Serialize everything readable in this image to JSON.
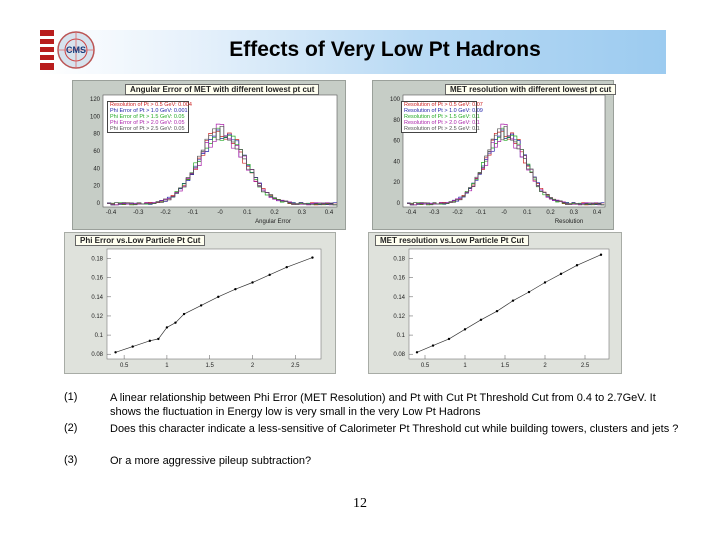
{
  "header": {
    "title": "Effects of Very Low Pt Hadrons",
    "logo_text": "CMS"
  },
  "plots": {
    "top_left": {
      "title": "Angular Error of MET with different lowest pt cut",
      "y_ticks": [
        "120",
        "100",
        "80",
        "60",
        "40",
        "20",
        "0"
      ],
      "x_ticks": [
        "-0.4",
        "-0.3",
        "-0.2",
        "-0.1",
        "-0",
        "0.1",
        "0.2",
        "0.3",
        "0.4"
      ],
      "xlabel": "Angular Error",
      "legend": [
        {
          "label": "Resolution of Pt > 0.5 GeV: 0.004",
          "color": "#cc2222"
        },
        {
          "label": "Phi Error of Pt > 1.0 GeV: 0.001",
          "color": "#2222aa"
        },
        {
          "label": "Phi Error of Pt > 1.5 GeV: 0.05",
          "color": "#22aa22"
        },
        {
          "label": "Phi Error of Pt > 2.0 GeV: 0.05",
          "color": "#aa22aa"
        },
        {
          "label": "Phi Error of Pt > 2.5 GeV: 0.05",
          "color": "#555555"
        }
      ]
    },
    "top_right": {
      "title": "MET resolution with different lowest pt cut",
      "y_ticks": [
        "100",
        "80",
        "60",
        "40",
        "20",
        "0"
      ],
      "x_ticks": [
        "-0.4",
        "-0.3",
        "-0.2",
        "-0.1",
        "-0",
        "0.1",
        "0.2",
        "0.3",
        "0.4"
      ],
      "xlabel": "Resolution",
      "legend": [
        {
          "label": "Resolution of Pt > 0.5 GeV: 0.07",
          "color": "#cc2222"
        },
        {
          "label": "Resolution of Pt > 1.0 GeV: 0.09",
          "color": "#2222aa"
        },
        {
          "label": "Resolution of Pt > 1.5 GeV: 0.1",
          "color": "#22aa22"
        },
        {
          "label": "Resolution of Pt > 2.0 GeV: 0.1",
          "color": "#aa22aa"
        },
        {
          "label": "Resolution of Pt > 2.5 GeV: 0.1",
          "color": "#555555"
        }
      ]
    },
    "bottom_left": {
      "title": "Phi Error vs.Low Particle Pt Cut",
      "y_ticks": [
        "0.18",
        "0.16",
        "0.14",
        "0.12",
        "0.1",
        "0.08"
      ],
      "x_ticks": [
        "0.5",
        "1",
        "1.5",
        "2",
        "2.5"
      ]
    },
    "bottom_right": {
      "title": "MET resolution vs.Low Particle Pt Cut",
      "y_ticks": [
        "0.18",
        "0.16",
        "0.14",
        "0.12",
        "0.1",
        "0.08"
      ],
      "x_ticks": [
        "0.5",
        "1",
        "1.5",
        "2",
        "2.5"
      ]
    }
  },
  "chart_data": [
    {
      "type": "line",
      "title": "Phi Error vs.Low Particle Pt Cut",
      "x": [
        0.4,
        0.6,
        0.8,
        0.9,
        1.0,
        1.1,
        1.2,
        1.4,
        1.6,
        1.8,
        2.0,
        2.2,
        2.4,
        2.7
      ],
      "y": [
        0.082,
        0.088,
        0.094,
        0.096,
        0.108,
        0.113,
        0.122,
        0.131,
        0.14,
        0.148,
        0.155,
        0.163,
        0.171,
        0.181
      ],
      "xlim": [
        0.3,
        2.8
      ],
      "ylim": [
        0.075,
        0.19
      ]
    },
    {
      "type": "line",
      "title": "MET resolution vs.Low Particle Pt Cut",
      "x": [
        0.4,
        0.6,
        0.8,
        1.0,
        1.2,
        1.4,
        1.6,
        1.8,
        2.0,
        2.2,
        2.4,
        2.7
      ],
      "y": [
        0.082,
        0.089,
        0.096,
        0.106,
        0.116,
        0.125,
        0.136,
        0.145,
        0.155,
        0.164,
        0.173,
        0.184
      ],
      "xlim": [
        0.3,
        2.8
      ],
      "ylim": [
        0.075,
        0.19
      ]
    }
  ],
  "notes": [
    {
      "num": "(1)",
      "text": "A linear relationship between Phi Error (MET Resolution) and Pt with Cut Pt Threshold Cut from 0.4 to 2.7GeV. It shows the fluctuation in Energy low is very small in the very Low Pt Hadrons"
    },
    {
      "num": "(2)",
      "text": "Does this character indicate a less-sensitive of Calorimeter Pt Threshold cut while building towers, clusters and jets ?"
    },
    {
      "num": "(3)",
      "text": "Or a more aggressive pileup subtraction?"
    }
  ],
  "page_number": "12"
}
